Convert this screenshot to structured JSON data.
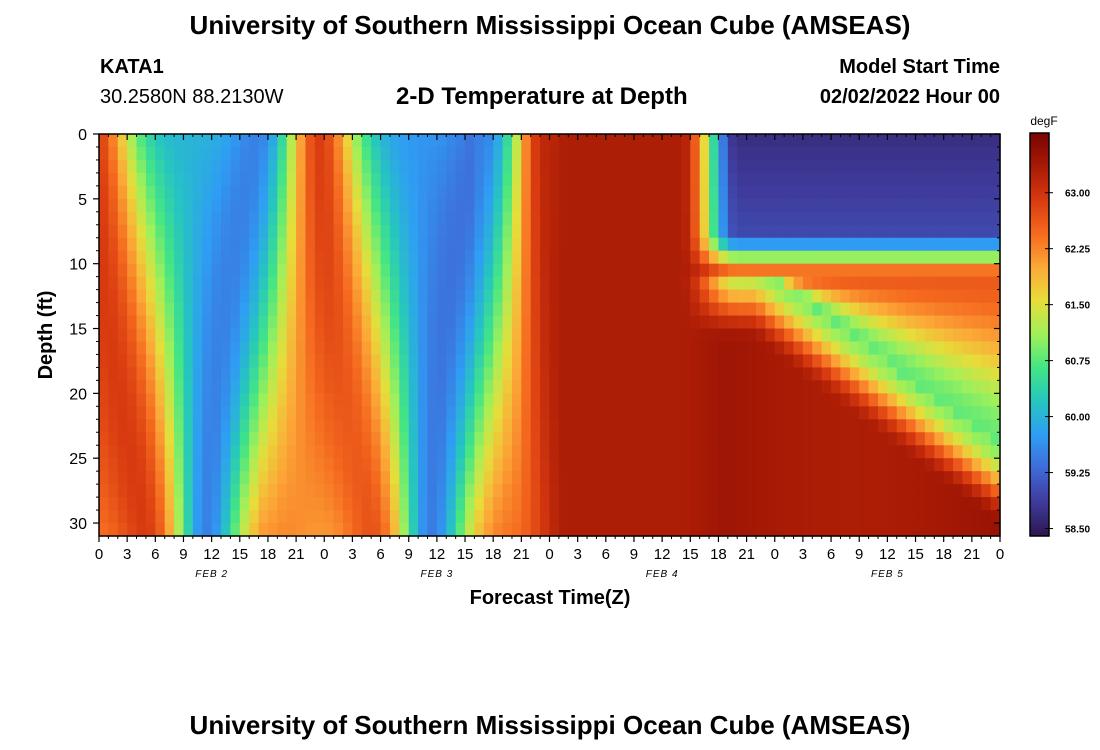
{
  "header": {
    "title": "University of Southern Mississippi Ocean Cube (AMSEAS)",
    "station": "KATA1",
    "location": "30.2580N  88.2130W",
    "plot_title": "2-D Temperature at Depth",
    "model_start_label": "Model Start Time",
    "model_start_value": "02/02/2022 Hour 00"
  },
  "footer": {
    "title": "University of Southern Mississippi Ocean Cube (AMSEAS)"
  },
  "chart_data": {
    "type": "heatmap",
    "title": "2-D Temperature at Depth",
    "xlabel": "Forecast Time(Z)",
    "ylabel": "Depth (ft)",
    "x_tick_labels": [
      "0",
      "3",
      "6",
      "9",
      "12",
      "15",
      "18",
      "21",
      "0",
      "3",
      "6",
      "9",
      "12",
      "15",
      "18",
      "21",
      "0",
      "3",
      "6",
      "9",
      "12",
      "15",
      "18",
      "21",
      "0",
      "3",
      "6",
      "9",
      "12",
      "15",
      "18",
      "21",
      "0"
    ],
    "x_date_labels": [
      {
        "label": "FEB 2",
        "hour": 12
      },
      {
        "label": "FEB 3",
        "hour": 36
      },
      {
        "label": "FEB 4",
        "hour": 60
      },
      {
        "label": "FEB 5",
        "hour": 84
      }
    ],
    "xlim_hours": [
      0,
      96
    ],
    "y_ticks": [
      0,
      5,
      10,
      15,
      20,
      25,
      30
    ],
    "ylim_ft": [
      0,
      31
    ],
    "colorbar": {
      "unit": "degF",
      "ticks": [
        "63.00",
        "62.25",
        "61.50",
        "60.75",
        "60.00",
        "59.25",
        "58.50"
      ],
      "range": [
        58.4,
        63.8
      ],
      "colors": [
        "#2c1650",
        "#3f3a9a",
        "#3f6ad8",
        "#2f9df4",
        "#26c5c0",
        "#43e585",
        "#9ff05a",
        "#e6dd3a",
        "#fca838",
        "#f56a1f",
        "#d83a10",
        "#a81a05",
        "#7a0403"
      ]
    },
    "description": "Temperature (degF) as function of forecast hour (x) and depth in feet (y)"
  }
}
